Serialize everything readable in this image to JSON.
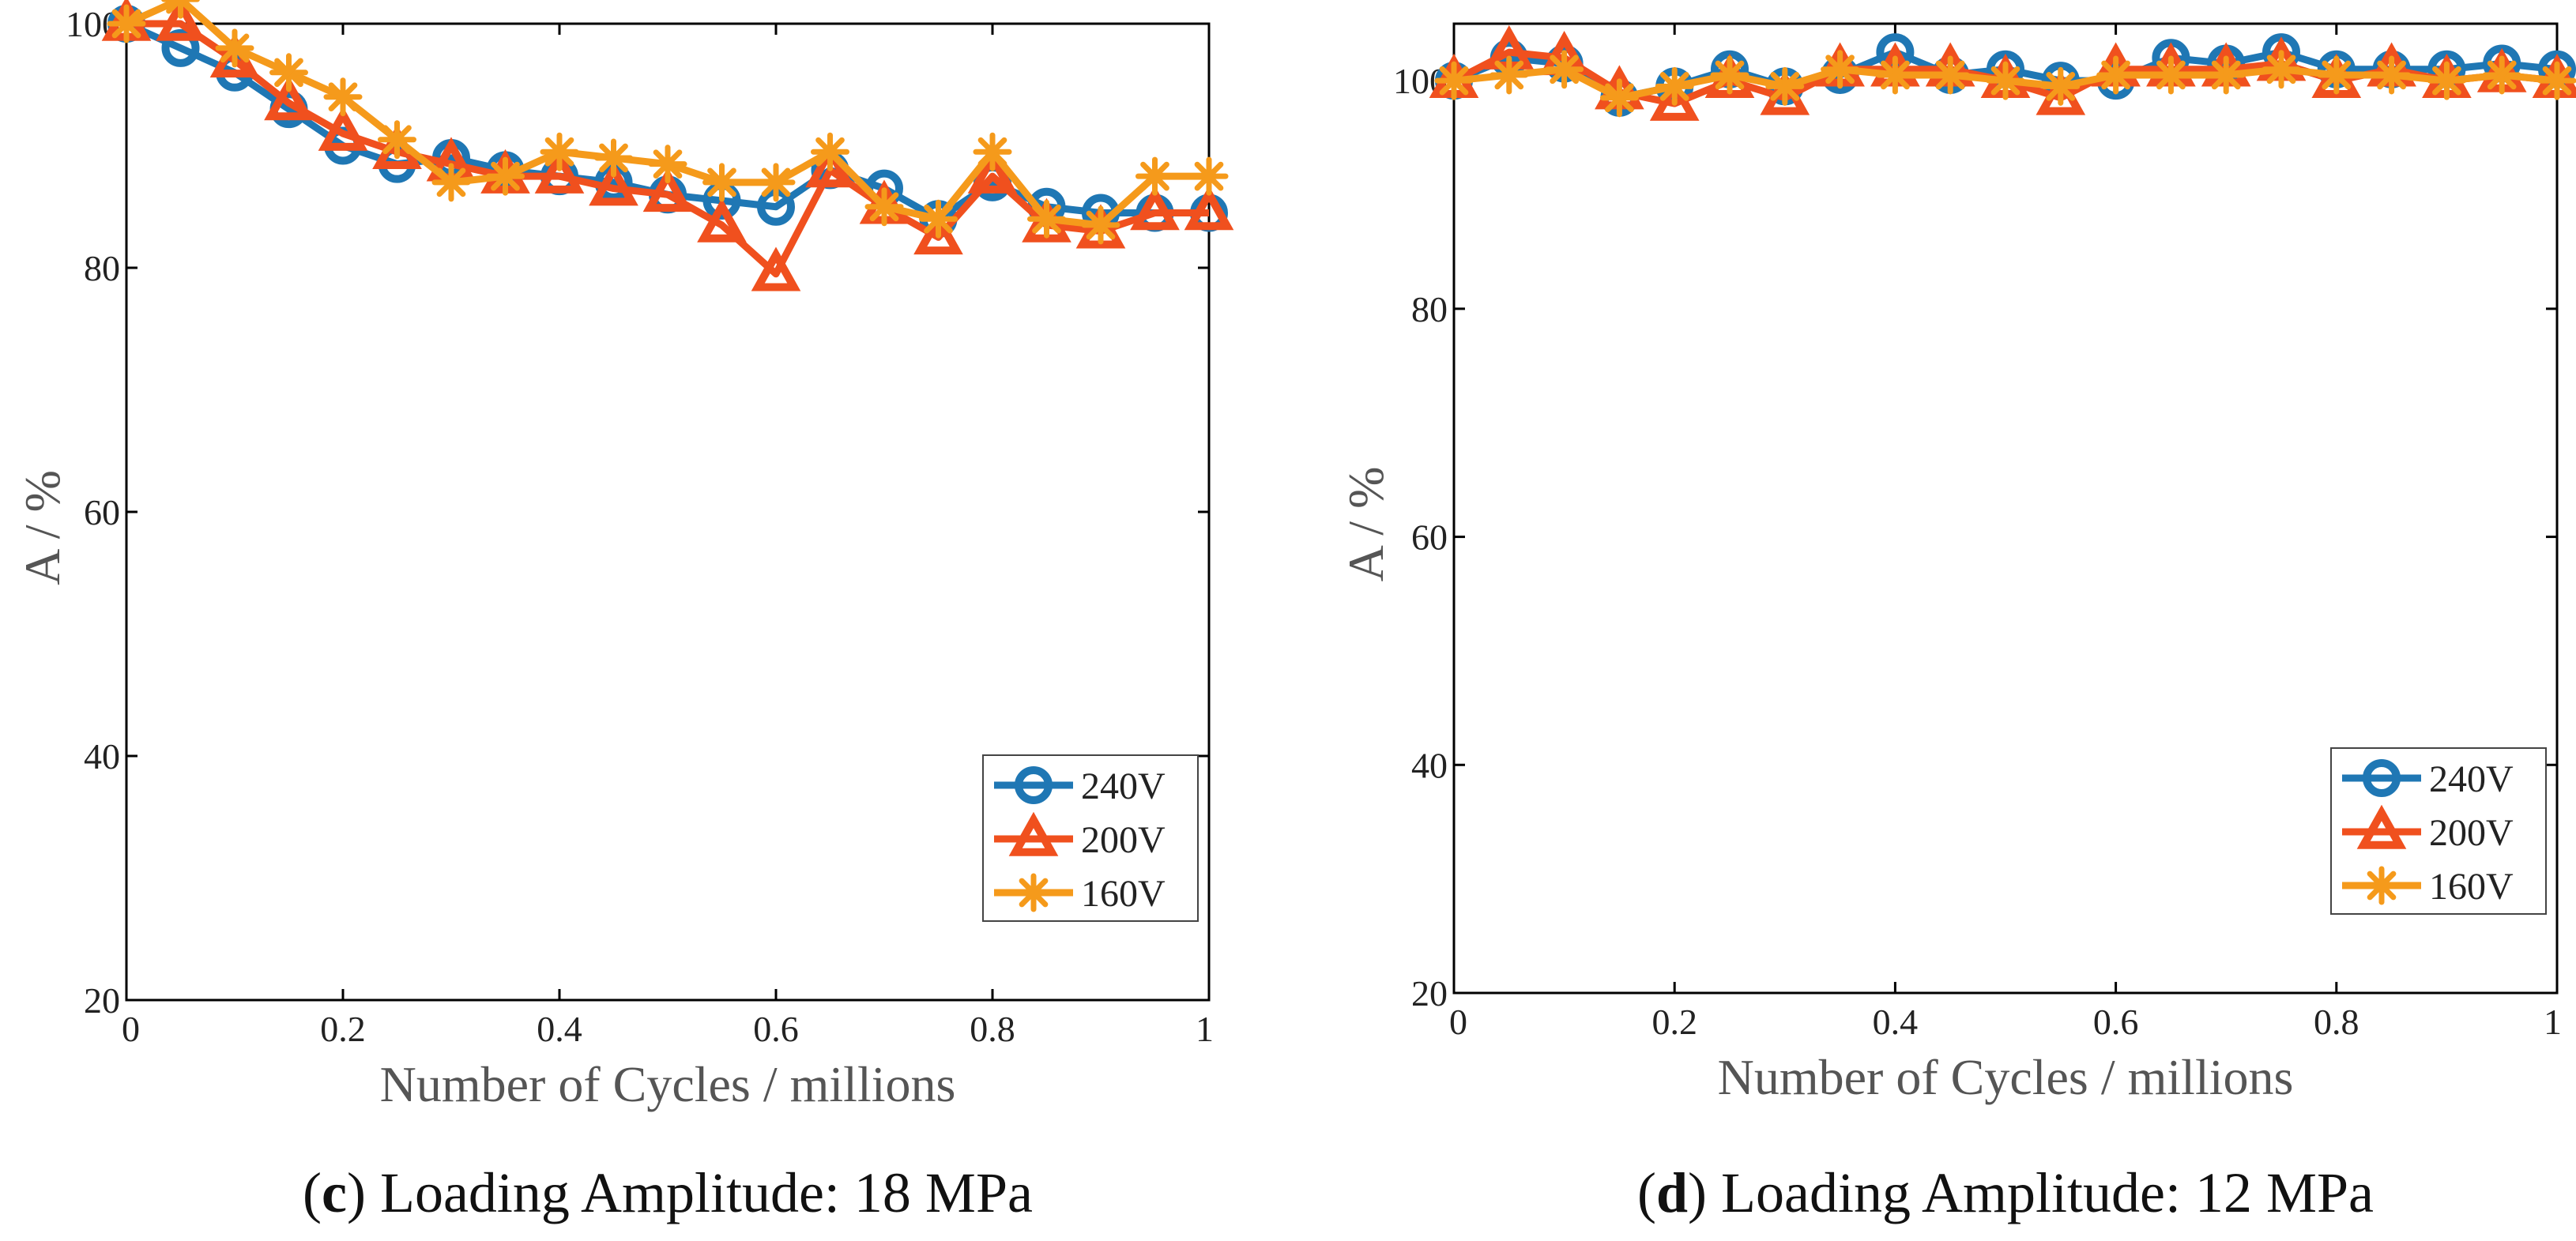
{
  "chart_data": [
    {
      "type": "line",
      "panel": "c",
      "caption_letter": "c",
      "caption_text": "Loading Amplitude: 18 MPa",
      "xlabel": "Number of Cycles / millions",
      "ylabel": "A / %",
      "xlim": [
        0,
        1
      ],
      "ylim": [
        20,
        100
      ],
      "xticks": [
        0,
        0.2,
        0.4,
        0.6,
        0.8,
        1
      ],
      "xtick_labels": [
        "0",
        "0.2",
        "0.4",
        "0.6",
        "0.8",
        "1"
      ],
      "yticks": [
        20,
        40,
        60,
        80,
        100
      ],
      "ytick_labels": [
        "20",
        "40",
        "60",
        "80",
        "100"
      ],
      "legend_position": "bottom-right",
      "x": [
        0,
        0.05,
        0.1,
        0.15,
        0.2,
        0.25,
        0.3,
        0.35,
        0.4,
        0.45,
        0.5,
        0.55,
        0.6,
        0.65,
        0.7,
        0.75,
        0.8,
        0.85,
        0.9,
        0.95,
        1
      ],
      "series": [
        {
          "name": "240V",
          "marker": "circle",
          "color": "#1f77b4",
          "values": [
            100,
            98,
            96,
            93,
            90,
            88.5,
            89,
            88,
            87.5,
            87,
            86,
            85.5,
            85,
            88,
            86.5,
            84,
            87,
            85,
            84.5,
            84.5,
            84.5
          ]
        },
        {
          "name": "200V",
          "marker": "triangle",
          "color": "#f0501e",
          "values": [
            100,
            100,
            97,
            93.5,
            91,
            89.5,
            88.5,
            87.5,
            87.5,
            86.5,
            86,
            83.5,
            79.5,
            88,
            85,
            82.5,
            87.5,
            83.5,
            83,
            84.5,
            84.5
          ]
        },
        {
          "name": "160V",
          "marker": "asterisk",
          "color": "#f59a1b",
          "values": [
            100,
            102,
            98,
            96,
            94,
            90.5,
            87,
            87.5,
            89.5,
            89,
            88.5,
            87,
            87,
            89.5,
            85,
            84,
            89.5,
            84,
            83.5,
            87.5,
            87.5
          ]
        }
      ]
    },
    {
      "type": "line",
      "panel": "d",
      "caption_letter": "d",
      "caption_text": "Loading Amplitude: 12 MPa",
      "xlabel": "Number of Cycles / millions",
      "ylabel": "A / %",
      "xlim": [
        0,
        1
      ],
      "ylim": [
        20,
        105
      ],
      "xticks": [
        0,
        0.2,
        0.4,
        0.6,
        0.8,
        1
      ],
      "xtick_labels": [
        "0",
        "0.2",
        "0.4",
        "0.6",
        "0.8",
        "1"
      ],
      "yticks": [
        20,
        40,
        60,
        80,
        100
      ],
      "ytick_labels": [
        "20",
        "40",
        "60",
        "80",
        "100"
      ],
      "legend_position": "bottom-right",
      "x": [
        0,
        0.05,
        0.1,
        0.15,
        0.2,
        0.25,
        0.3,
        0.35,
        0.4,
        0.45,
        0.5,
        0.55,
        0.6,
        0.65,
        0.7,
        0.75,
        0.8,
        0.85,
        0.9,
        0.95,
        1
      ],
      "series": [
        {
          "name": "240V",
          "marker": "circle",
          "color": "#1f77b4",
          "values": [
            100,
            102,
            101.5,
            98.5,
            99.5,
            101,
            99.5,
            100.5,
            102.5,
            100.5,
            101,
            100,
            100,
            102,
            101.5,
            102.5,
            101,
            101,
            101,
            101.5,
            101
          ]
        },
        {
          "name": "200V",
          "marker": "triangle",
          "color": "#f0501e",
          "values": [
            100,
            102.5,
            102,
            99,
            98,
            100,
            98.5,
            101,
            101,
            101,
            100,
            98.5,
            101,
            101,
            101,
            101.5,
            100,
            101,
            100,
            100.5,
            100
          ]
        },
        {
          "name": "160V",
          "marker": "asterisk",
          "color": "#f59a1b",
          "values": [
            100,
            100.5,
            101,
            98.5,
            99.5,
            100.5,
            99.5,
            101,
            100.5,
            100.5,
            100,
            99.5,
            100.5,
            100.5,
            100.5,
            101,
            100.5,
            100.5,
            100,
            100.5,
            100
          ]
        }
      ]
    }
  ]
}
